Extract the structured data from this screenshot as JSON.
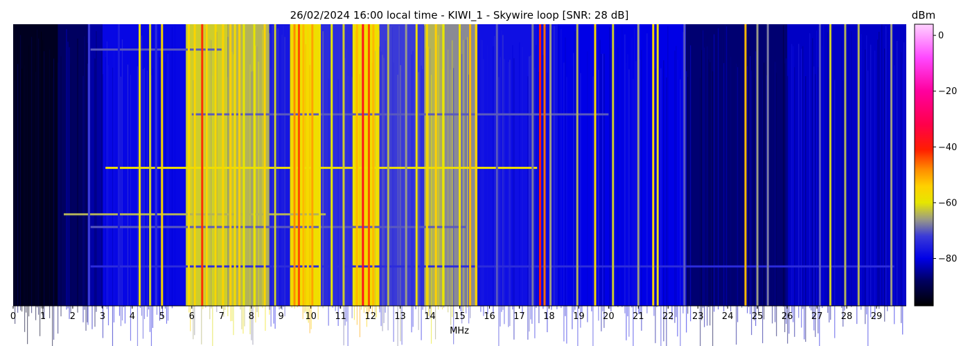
{
  "chart_data": {
    "type": "heatmap",
    "title": "26/02/2024 16:00 local time - KIWI_1 - Skywire loop [SNR: 28 dB]",
    "xlabel": "MHz",
    "ylabel": "",
    "xlim": [
      0,
      30
    ],
    "x_ticks": [
      "0",
      "1",
      "2",
      "3",
      "4",
      "5",
      "6",
      "7",
      "8",
      "9",
      "10",
      "11",
      "12",
      "13",
      "14",
      "15",
      "16",
      "17",
      "18",
      "19",
      "20",
      "21",
      "22",
      "23",
      "24",
      "25",
      "26",
      "27",
      "28",
      "29"
    ],
    "colorbar": {
      "label": "dBm",
      "range": [
        -97,
        4
      ],
      "ticks": [
        0,
        -20,
        -40,
        -60,
        -80
      ],
      "tick_labels": [
        "0",
        "−20",
        "−40",
        "−60",
        "−80"
      ],
      "colormap": [
        {
          "value": -97,
          "color": "#000000"
        },
        {
          "value": -88,
          "color": "#000060"
        },
        {
          "value": -80,
          "color": "#0000e6"
        },
        {
          "value": -72,
          "color": "#3a3ad8"
        },
        {
          "value": -66,
          "color": "#9a9a86"
        },
        {
          "value": -60,
          "color": "#e6e600"
        },
        {
          "value": -54,
          "color": "#ffd000"
        },
        {
          "value": -48,
          "color": "#ff8c00"
        },
        {
          "value": -41,
          "color": "#ff1e00"
        },
        {
          "value": -32,
          "color": "#ff004a"
        },
        {
          "value": -20,
          "color": "#ff009e"
        },
        {
          "value": -8,
          "color": "#ff48ff"
        },
        {
          "value": 4,
          "color": "#ffd2ff"
        }
      ]
    },
    "background_level_dbm": -82,
    "band_levels": [
      {
        "from": 0.0,
        "to": 1.5,
        "dbm": -94
      },
      {
        "from": 1.5,
        "to": 2.5,
        "dbm": -88
      },
      {
        "from": 2.5,
        "to": 3.0,
        "dbm": -84
      },
      {
        "from": 3.0,
        "to": 5.8,
        "dbm": -79
      },
      {
        "from": 5.8,
        "to": 7.2,
        "dbm": -62
      },
      {
        "from": 7.2,
        "to": 8.6,
        "dbm": -64
      },
      {
        "from": 8.6,
        "to": 9.3,
        "dbm": -77
      },
      {
        "from": 9.3,
        "to": 10.3,
        "dbm": -58
      },
      {
        "from": 10.3,
        "to": 11.4,
        "dbm": -74
      },
      {
        "from": 11.4,
        "to": 12.3,
        "dbm": -58
      },
      {
        "from": 12.3,
        "to": 13.8,
        "dbm": -72
      },
      {
        "from": 13.8,
        "to": 14.5,
        "dbm": -64
      },
      {
        "from": 14.5,
        "to": 15.6,
        "dbm": -67
      },
      {
        "from": 15.6,
        "to": 18.3,
        "dbm": -78
      },
      {
        "from": 18.3,
        "to": 22.6,
        "dbm": -80
      },
      {
        "from": 22.6,
        "to": 26.0,
        "dbm": -87
      },
      {
        "from": 26.0,
        "to": 30.0,
        "dbm": -82
      }
    ],
    "persistent_signals": [
      {
        "mhz": 2.55,
        "dbm": -72
      },
      {
        "mhz": 3.55,
        "dbm": -76
      },
      {
        "mhz": 4.25,
        "dbm": -58
      },
      {
        "mhz": 4.6,
        "dbm": -62
      },
      {
        "mhz": 4.8,
        "dbm": -74
      },
      {
        "mhz": 5.0,
        "dbm": -56
      },
      {
        "mhz": 5.9,
        "dbm": -56
      },
      {
        "mhz": 6.1,
        "dbm": -55
      },
      {
        "mhz": 6.35,
        "dbm": -42
      },
      {
        "mhz": 6.5,
        "dbm": -55
      },
      {
        "mhz": 6.8,
        "dbm": -56
      },
      {
        "mhz": 7.05,
        "dbm": -55
      },
      {
        "mhz": 7.3,
        "dbm": -54
      },
      {
        "mhz": 7.45,
        "dbm": -57
      },
      {
        "mhz": 7.6,
        "dbm": -54
      },
      {
        "mhz": 7.75,
        "dbm": -60
      },
      {
        "mhz": 8.1,
        "dbm": -60
      },
      {
        "mhz": 8.45,
        "dbm": -55
      },
      {
        "mhz": 8.8,
        "dbm": -62
      },
      {
        "mhz": 9.45,
        "dbm": -48
      },
      {
        "mhz": 9.6,
        "dbm": -44
      },
      {
        "mhz": 9.75,
        "dbm": -52
      },
      {
        "mhz": 9.9,
        "dbm": -56
      },
      {
        "mhz": 10.05,
        "dbm": -50
      },
      {
        "mhz": 10.3,
        "dbm": -58
      },
      {
        "mhz": 10.7,
        "dbm": -60
      },
      {
        "mhz": 11.1,
        "dbm": -62
      },
      {
        "mhz": 11.55,
        "dbm": -52
      },
      {
        "mhz": 11.75,
        "dbm": -38
      },
      {
        "mhz": 11.95,
        "dbm": -44
      },
      {
        "mhz": 12.1,
        "dbm": -52
      },
      {
        "mhz": 12.6,
        "dbm": -64
      },
      {
        "mhz": 13.2,
        "dbm": -66
      },
      {
        "mhz": 13.55,
        "dbm": -58
      },
      {
        "mhz": 13.9,
        "dbm": -56
      },
      {
        "mhz": 14.2,
        "dbm": -54
      },
      {
        "mhz": 14.45,
        "dbm": -60
      },
      {
        "mhz": 15.0,
        "dbm": -58
      },
      {
        "mhz": 15.35,
        "dbm": -52
      },
      {
        "mhz": 15.55,
        "dbm": -55
      },
      {
        "mhz": 16.25,
        "dbm": -70
      },
      {
        "mhz": 17.45,
        "dbm": -68
      },
      {
        "mhz": 17.7,
        "dbm": -40
      },
      {
        "mhz": 17.85,
        "dbm": -46
      },
      {
        "mhz": 18.05,
        "dbm": -66
      },
      {
        "mhz": 18.95,
        "dbm": -64
      },
      {
        "mhz": 19.55,
        "dbm": -56
      },
      {
        "mhz": 20.15,
        "dbm": -62
      },
      {
        "mhz": 21.0,
        "dbm": -66
      },
      {
        "mhz": 21.5,
        "dbm": -56
      },
      {
        "mhz": 21.65,
        "dbm": -58
      },
      {
        "mhz": 22.55,
        "dbm": -70
      },
      {
        "mhz": 24.6,
        "dbm": -52
      },
      {
        "mhz": 25.0,
        "dbm": -66
      },
      {
        "mhz": 25.35,
        "dbm": -68
      },
      {
        "mhz": 27.1,
        "dbm": -70
      },
      {
        "mhz": 27.45,
        "dbm": -62
      },
      {
        "mhz": 27.95,
        "dbm": -64
      },
      {
        "mhz": 28.4,
        "dbm": -64
      },
      {
        "mhz": 29.5,
        "dbm": -66
      }
    ],
    "horizontal_traces": [
      {
        "time_fraction": 0.51,
        "from": 3.1,
        "to": 17.6,
        "dbm": -58
      },
      {
        "time_fraction": 0.675,
        "from": 1.7,
        "to": 10.5,
        "dbm": -64
      },
      {
        "time_fraction": 0.72,
        "from": 2.6,
        "to": 15.2,
        "dbm": -70
      },
      {
        "time_fraction": 0.09,
        "from": 2.6,
        "to": 7.0,
        "dbm": -70
      },
      {
        "time_fraction": 0.86,
        "from": 2.6,
        "to": 29.6,
        "dbm": -74
      },
      {
        "time_fraction": 0.32,
        "from": 6.0,
        "to": 20.0,
        "dbm": -70
      }
    ]
  }
}
